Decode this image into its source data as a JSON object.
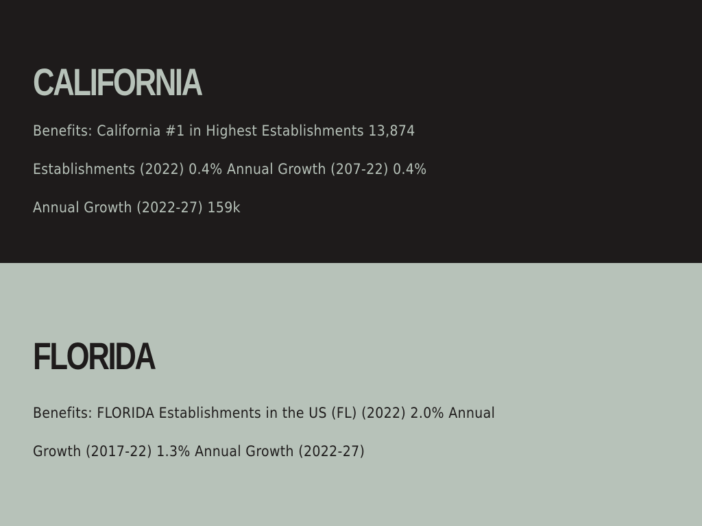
{
  "sections": [
    {
      "heading": "CALIFORNIA",
      "lines": [
        "Benefits: California #1 in Highest Establishments 13,874",
        "Establishments (2022) 0.4% Annual Growth (207-22) 0.4%",
        "Annual Growth (2022-27) 159k"
      ]
    },
    {
      "heading": "FLORIDA",
      "lines": [
        "Benefits: FLORIDA Establishments in the US (FL) (2022) 2.0% Annual",
        "Growth (2017-22) 1.3% Annual Growth (2022-27)"
      ]
    }
  ],
  "colors": {
    "dark": "#1e1b1b",
    "sage": "#b7c2b9"
  }
}
